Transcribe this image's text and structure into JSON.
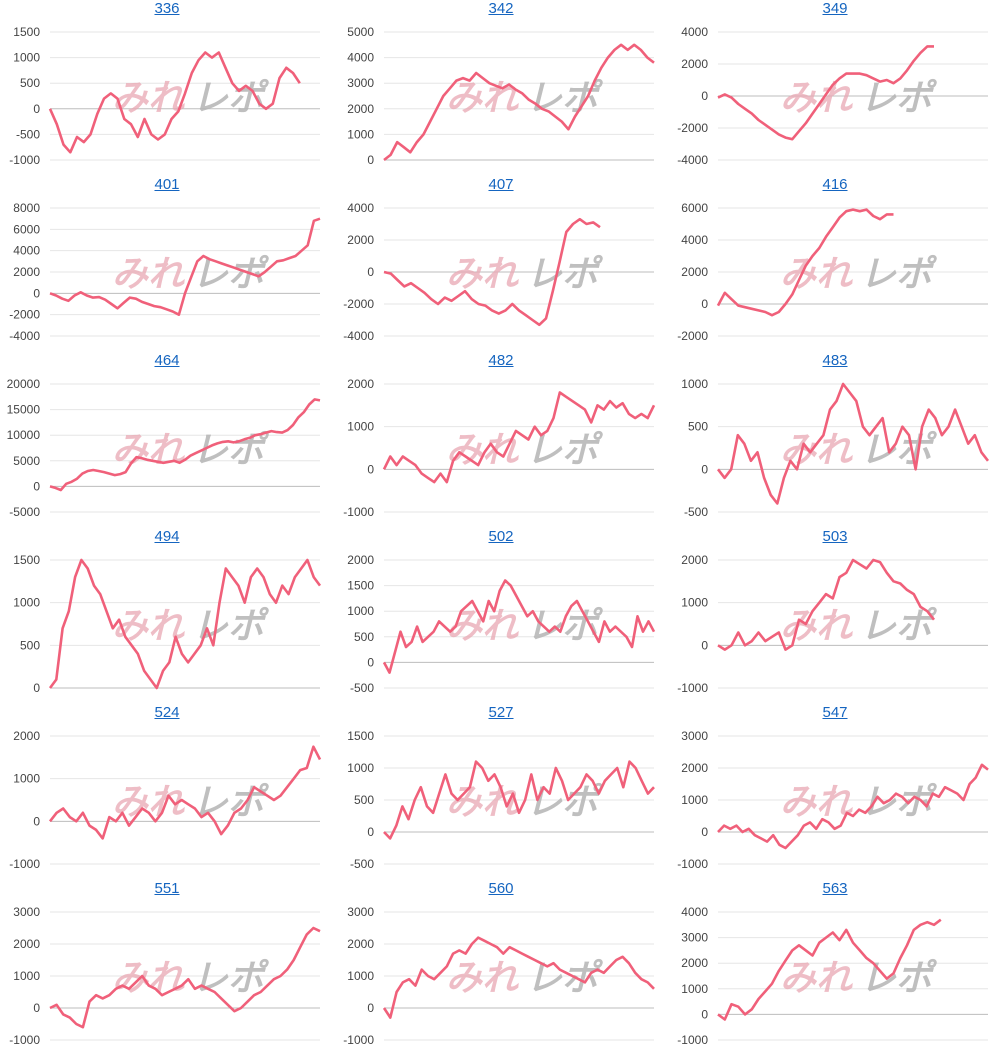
{
  "watermark": {
    "part_a": "みれ",
    "part_b": "レポ"
  },
  "line_color": "#f0607a",
  "chart_data": [
    {
      "type": "line",
      "title": "336",
      "ylim": [
        -1000,
        1500
      ],
      "yticks": [
        1500,
        1000,
        500,
        0,
        -500,
        -1000
      ],
      "values": [
        0,
        -300,
        -700,
        -850,
        -550,
        -650,
        -500,
        -100,
        200,
        300,
        200,
        -200,
        -300,
        -550,
        -200,
        -500,
        -600,
        -500,
        -200,
        -50,
        300,
        700,
        950,
        1100,
        1000,
        1100,
        800,
        500,
        350,
        450,
        350,
        100,
        0,
        100,
        600,
        800,
        700,
        500
      ]
    },
    {
      "type": "line",
      "title": "342",
      "ylim": [
        0,
        5000
      ],
      "yticks": [
        5000,
        4000,
        3000,
        2000,
        1000,
        0
      ],
      "values": [
        0,
        200,
        700,
        500,
        300,
        700,
        1000,
        1500,
        2000,
        2500,
        2800,
        3100,
        3200,
        3100,
        3400,
        3200,
        3000,
        2900,
        2800,
        2950,
        2750,
        2600,
        2350,
        2200,
        2000,
        1900,
        1700,
        1500,
        1200,
        1700,
        2100,
        2500,
        3100,
        3600,
        4000,
        4300,
        4500,
        4300,
        4500,
        4300,
        4000,
        3800
      ]
    },
    {
      "type": "line",
      "title": "349",
      "ylim": [
        -4000,
        4000
      ],
      "yticks": [
        4000,
        2000,
        0,
        -2000,
        -4000
      ],
      "values": [
        -100,
        100,
        -100,
        -500,
        -800,
        -1100,
        -1500,
        -1800,
        -2100,
        -2400,
        -2600,
        -2700,
        -2200,
        -1700,
        -1100,
        -500,
        100,
        700,
        1100,
        1400,
        1400,
        1400,
        1300,
        1100,
        900,
        1000,
        800,
        1100,
        1600,
        2200,
        2700,
        3100,
        3100
      ]
    },
    {
      "type": "line",
      "title": "401",
      "ylim": [
        -4000,
        8000
      ],
      "yticks": [
        8000,
        6000,
        4000,
        2000,
        0,
        -2000,
        -4000
      ],
      "values": [
        0,
        -200,
        -500,
        -700,
        -200,
        100,
        -200,
        -400,
        -350,
        -600,
        -1000,
        -1400,
        -900,
        -400,
        -500,
        -800,
        -1000,
        -1200,
        -1300,
        -1500,
        -1700,
        -2000,
        0,
        1500,
        3000,
        3500,
        3200,
        3000,
        2800,
        2600,
        2400,
        2200,
        2000,
        1800,
        1600,
        2000,
        2500,
        3000,
        3100,
        3300,
        3500,
        4000,
        4500,
        6800,
        7000
      ]
    },
    {
      "type": "line",
      "title": "407",
      "ylim": [
        -4000,
        4000
      ],
      "yticks": [
        4000,
        2000,
        0,
        -2000,
        -4000
      ],
      "values": [
        0,
        -100,
        -500,
        -900,
        -700,
        -1000,
        -1300,
        -1700,
        -2000,
        -1600,
        -1800,
        -1500,
        -1200,
        -1700,
        -2000,
        -2100,
        -2400,
        -2600,
        -2400,
        -2000,
        -2400,
        -2700,
        -3000,
        -3300,
        -2900,
        -1200,
        600,
        2500,
        3000,
        3300,
        3000,
        3100,
        2800
      ]
    },
    {
      "type": "line",
      "title": "416",
      "ylim": [
        -2000,
        6000
      ],
      "yticks": [
        6000,
        4000,
        2000,
        0,
        -2000
      ],
      "values": [
        -100,
        700,
        300,
        -100,
        -200,
        -300,
        -400,
        -500,
        -700,
        -500,
        0,
        600,
        1500,
        2400,
        3000,
        3500,
        4200,
        4800,
        5400,
        5800,
        5900,
        5800,
        5900,
        5500,
        5300,
        5600,
        5600
      ]
    },
    {
      "type": "line",
      "title": "464",
      "ylim": [
        -5000,
        20000
      ],
      "yticks": [
        20000,
        15000,
        10000,
        5000,
        0,
        -5000
      ],
      "values": [
        0,
        -300,
        -700,
        500,
        900,
        1500,
        2500,
        3000,
        3200,
        3000,
        2800,
        2500,
        2200,
        2400,
        2800,
        4500,
        5700,
        5500,
        5200,
        5000,
        4800,
        4600,
        4800,
        5000,
        4600,
        5200,
        6000,
        6500,
        7000,
        7500,
        8000,
        8400,
        8700,
        8800,
        8600,
        8800,
        9200,
        9500,
        10000,
        10200,
        10500,
        10800,
        10600,
        10500,
        11000,
        12000,
        13500,
        14500,
        16000,
        17000,
        16800
      ]
    },
    {
      "type": "line",
      "title": "482",
      "ylim": [
        -1000,
        2000
      ],
      "yticks": [
        2000,
        1000,
        0,
        -1000
      ],
      "values": [
        0,
        300,
        100,
        300,
        200,
        100,
        -100,
        -200,
        -300,
        -100,
        -300,
        200,
        400,
        300,
        200,
        100,
        400,
        600,
        400,
        300,
        600,
        900,
        800,
        700,
        1000,
        800,
        900,
        1200,
        1800,
        1700,
        1600,
        1500,
        1400,
        1100,
        1500,
        1400,
        1600,
        1450,
        1550,
        1300,
        1200,
        1300,
        1200,
        1500
      ]
    },
    {
      "type": "line",
      "title": "483",
      "ylim": [
        -500,
        1000
      ],
      "yticks": [
        1000,
        500,
        0,
        -500
      ],
      "values": [
        0,
        -100,
        0,
        400,
        300,
        100,
        200,
        -100,
        -300,
        -400,
        -100,
        100,
        0,
        300,
        200,
        300,
        400,
        700,
        800,
        1000,
        900,
        800,
        500,
        400,
        500,
        600,
        200,
        300,
        500,
        400,
        0,
        500,
        700,
        600,
        400,
        500,
        700,
        500,
        300,
        400,
        200,
        100
      ]
    },
    {
      "type": "line",
      "title": "494",
      "ylim": [
        0,
        1500
      ],
      "yticks": [
        1500,
        1000,
        500,
        0
      ],
      "values": [
        0,
        100,
        700,
        900,
        1300,
        1500,
        1400,
        1200,
        1100,
        900,
        700,
        800,
        600,
        500,
        400,
        200,
        100,
        0,
        200,
        300,
        600,
        400,
        300,
        400,
        500,
        700,
        500,
        1000,
        1400,
        1300,
        1200,
        1000,
        1300,
        1400,
        1300,
        1100,
        1000,
        1200,
        1100,
        1300,
        1400,
        1500,
        1300,
        1200
      ]
    },
    {
      "type": "line",
      "title": "502",
      "ylim": [
        -500,
        2000
      ],
      "yticks": [
        2000,
        1500,
        1000,
        500,
        0,
        -500
      ],
      "values": [
        0,
        -200,
        200,
        600,
        300,
        400,
        700,
        400,
        500,
        600,
        800,
        700,
        600,
        700,
        1000,
        1100,
        1200,
        1000,
        800,
        1200,
        1000,
        1400,
        1600,
        1500,
        1300,
        1100,
        900,
        1000,
        800,
        700,
        600,
        700,
        600,
        900,
        1100,
        1200,
        1000,
        800,
        600,
        400,
        800,
        600,
        700,
        600,
        500,
        300,
        900,
        600,
        800,
        600
      ]
    },
    {
      "type": "line",
      "title": "503",
      "ylim": [
        -1000,
        2000
      ],
      "yticks": [
        2000,
        1000,
        0,
        -1000
      ],
      "values": [
        0,
        -100,
        0,
        300,
        0,
        100,
        300,
        100,
        200,
        300,
        -100,
        0,
        600,
        500,
        800,
        1000,
        1200,
        1100,
        1600,
        1700,
        2000,
        1900,
        1800,
        2000,
        1950,
        1700,
        1500,
        1450,
        1300,
        1200,
        900,
        800,
        600
      ]
    },
    {
      "type": "line",
      "title": "524",
      "ylim": [
        -1000,
        2000
      ],
      "yticks": [
        2000,
        1000,
        0,
        -1000
      ],
      "values": [
        0,
        200,
        300,
        100,
        0,
        200,
        -100,
        -200,
        -400,
        100,
        0,
        200,
        -100,
        100,
        300,
        200,
        0,
        200,
        600,
        400,
        500,
        400,
        300,
        100,
        200,
        0,
        -300,
        -100,
        200,
        300,
        500,
        800,
        700,
        600,
        500,
        600,
        800,
        1000,
        1200,
        1250,
        1750,
        1450
      ]
    },
    {
      "type": "line",
      "title": "527",
      "ylim": [
        -500,
        1500
      ],
      "yticks": [
        1500,
        1000,
        500,
        0,
        -500
      ],
      "values": [
        0,
        -100,
        100,
        400,
        200,
        500,
        700,
        400,
        300,
        600,
        900,
        600,
        500,
        600,
        700,
        1100,
        1000,
        800,
        900,
        700,
        400,
        600,
        300,
        500,
        900,
        500,
        700,
        600,
        1000,
        800,
        500,
        600,
        700,
        900,
        800,
        600,
        800,
        900,
        1000,
        700,
        1100,
        1000,
        800,
        600,
        700
      ]
    },
    {
      "type": "line",
      "title": "547",
      "ylim": [
        -1000,
        3000
      ],
      "yticks": [
        3000,
        2000,
        1000,
        0,
        -1000
      ],
      "values": [
        0,
        200,
        100,
        200,
        0,
        100,
        -100,
        -200,
        -300,
        -100,
        -400,
        -500,
        -300,
        -100,
        200,
        300,
        100,
        400,
        300,
        100,
        200,
        600,
        500,
        700,
        600,
        800,
        1100,
        900,
        1000,
        1200,
        1100,
        900,
        1100,
        1000,
        800,
        1200,
        1100,
        1400,
        1300,
        1200,
        1000,
        1500,
        1700,
        2100,
        1950
      ]
    },
    {
      "type": "line",
      "title": "551",
      "ylim": [
        -1000,
        3000
      ],
      "yticks": [
        3000,
        2000,
        1000,
        0,
        -1000
      ],
      "values": [
        0,
        100,
        -200,
        -300,
        -500,
        -600,
        200,
        400,
        300,
        400,
        600,
        700,
        600,
        800,
        1000,
        700,
        600,
        400,
        500,
        600,
        700,
        900,
        600,
        700,
        600,
        500,
        300,
        100,
        -100,
        0,
        200,
        400,
        500,
        700,
        900,
        1000,
        1200,
        1500,
        1900,
        2300,
        2500,
        2400
      ]
    },
    {
      "type": "line",
      "title": "560",
      "ylim": [
        -1000,
        3000
      ],
      "yticks": [
        3000,
        2000,
        1000,
        0,
        -1000
      ],
      "values": [
        0,
        -300,
        500,
        800,
        900,
        700,
        1200,
        1000,
        900,
        1100,
        1300,
        1700,
        1800,
        1700,
        2000,
        2200,
        2100,
        2000,
        1900,
        1700,
        1900,
        1800,
        1700,
        1600,
        1500,
        1400,
        1300,
        1400,
        1200,
        1100,
        1000,
        900,
        800,
        1100,
        1200,
        1100,
        1300,
        1500,
        1600,
        1400,
        1100,
        900,
        800,
        600
      ]
    },
    {
      "type": "line",
      "title": "563",
      "ylim": [
        -1000,
        4000
      ],
      "yticks": [
        4000,
        3000,
        2000,
        1000,
        0,
        -1000
      ],
      "values": [
        0,
        -200,
        400,
        300,
        0,
        200,
        600,
        900,
        1200,
        1700,
        2100,
        2500,
        2700,
        2500,
        2300,
        2800,
        3000,
        3200,
        2900,
        3300,
        2800,
        2500,
        2200,
        2000,
        1700,
        1400,
        1600,
        2200,
        2700,
        3300,
        3500,
        3600,
        3500,
        3700
      ]
    }
  ]
}
